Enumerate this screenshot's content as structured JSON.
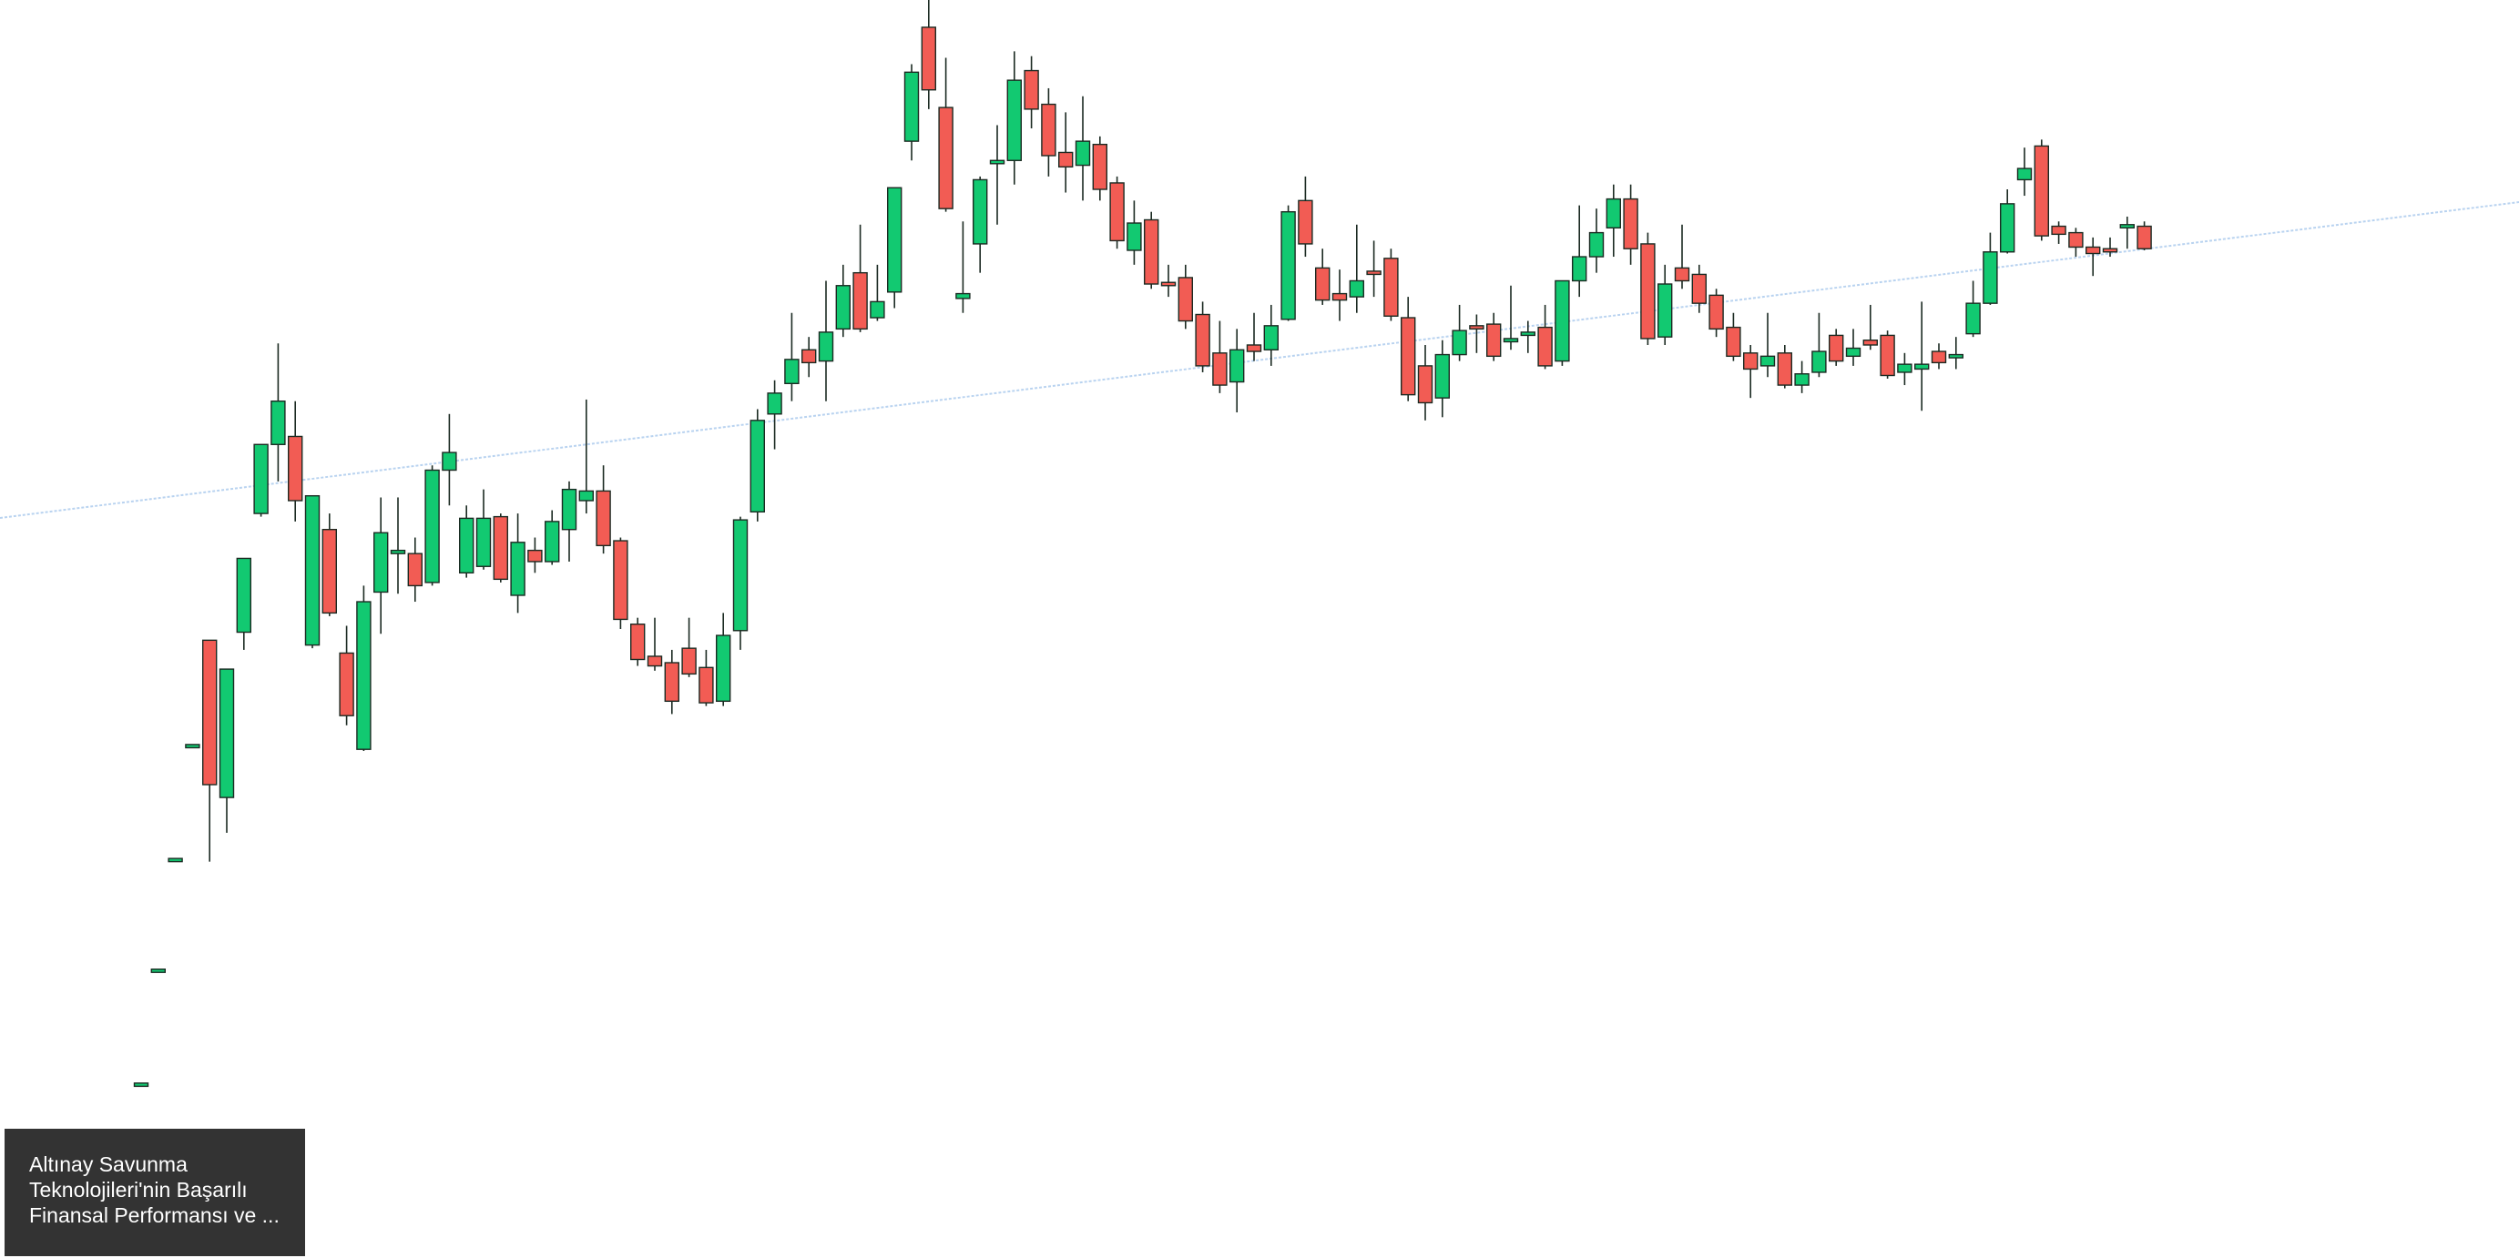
{
  "chart_data": {
    "type": "candlestick",
    "ylim": [
      0,
      784
    ],
    "up_color": "#12c971",
    "down_color": "#f25c54",
    "edge_color": "#1b2a22",
    "annotation": [
      "Altınay Savunma",
      "Teknolojileri'nin Başarılı",
      "Finansal Performansı ve ..."
    ],
    "series": [
      {
        "open": [
          107,
          178,
          247,
          318,
          385,
          287,
          390,
          464,
          507,
          512,
          382,
          454,
          377,
          317,
          415,
          439,
          439,
          421,
          491,
          427,
          431,
          462,
          413,
          441,
          434,
          454,
          472,
          478,
          447,
          395,
          375,
          371,
          380,
          368,
          347,
          391,
          465,
          526,
          545,
          566,
          559,
          579,
          614,
          586,
          602,
          696,
          767,
          717,
          598,
          632,
          682,
          684,
          740,
          719,
          689,
          681,
          694,
          670,
          628,
          647,
          608,
          611,
          588,
          564,
          546,
          569,
          566,
          585,
          659,
          617,
          601,
          599,
          615,
          623,
          586,
          556,
          536,
          563,
          581,
          582,
          571,
          575,
          580,
          559,
          609,
          624,
          642,
          660,
          632,
          574,
          617,
          613,
          600,
          580,
          564,
          556,
          564,
          544,
          552,
          575,
          562,
          572,
          575,
          552,
          554,
          565,
          561,
          576,
          595,
          627,
          672,
          693,
          643,
          639,
          630,
          629,
          642,
          643
        ],
        "high": [
          109,
          180,
          249,
          320,
          385,
          367,
          436,
          507,
          570,
          534,
          475,
          464,
          394,
          419,
          474,
          474,
          449,
          494,
          526,
          469,
          479,
          464,
          464,
          449,
          466,
          484,
          535,
          494,
          449,
          399,
          399,
          379,
          399,
          379,
          402,
          462,
          529,
          547,
          589,
          574,
          609,
          619,
          644,
          619,
          667,
          744,
          784,
          748,
          646,
          674,
          706,
          752,
          749,
          729,
          714,
          724,
          699,
          674,
          659,
          652,
          619,
          619,
          596,
          584,
          579,
          589,
          594,
          656,
          674,
          629,
          616,
          644,
          634,
          629,
          599,
          569,
          572,
          594,
          588,
          589,
          606,
          584,
          594,
          609,
          656,
          654,
          669,
          669,
          639,
          619,
          644,
          619,
          604,
          589,
          569,
          589,
          569,
          559,
          589,
          579,
          579,
          594,
          578,
          564,
          596,
          570,
          574,
          609,
          639,
          666,
          692,
          697,
          646,
          642,
          636,
          636,
          649,
          646
        ],
        "low": [
          107,
          178,
          247,
          318,
          247,
          265,
          379,
          462,
          484,
          459,
          380,
          400,
          332,
          316,
          389,
          414,
          409,
          419,
          469,
          424,
          429,
          421,
          402,
          427,
          432,
          434,
          464,
          439,
          392,
          369,
          366,
          339,
          362,
          344,
          344,
          379,
          459,
          504,
          534,
          549,
          534,
          574,
          577,
          584,
          592,
          684,
          716,
          652,
          589,
          614,
          644,
          669,
          704,
          674,
          664,
          659,
          659,
          629,
          619,
          604,
          599,
          579,
          552,
          539,
          527,
          559,
          556,
          584,
          624,
          594,
          584,
          589,
          599,
          584,
          534,
          522,
          524,
          559,
          564,
          559,
          566,
          564,
          554,
          556,
          599,
          614,
          624,
          619,
          569,
          569,
          604,
          589,
          574,
          559,
          536,
          549,
          542,
          539,
          549,
          556,
          556,
          566,
          548,
          544,
          528,
          554,
          554,
          574,
          594,
          626,
          662,
          634,
          632,
          624,
          612,
          624,
          629,
          628
        ],
        "close": [
          109,
          180,
          249,
          320,
          295,
          367,
          436,
          507,
          534,
          472,
          475,
          402,
          338,
          409,
          452,
          441,
          419,
          491,
          502,
          461,
          461,
          423,
          446,
          434,
          459,
          479,
          478,
          444,
          398,
          373,
          369,
          347,
          364,
          346,
          388,
          460,
          522,
          539,
          560,
          558,
          577,
          606,
          579,
          596,
          667,
          739,
          728,
          654,
          601,
          672,
          684,
          734,
          716,
          687,
          680,
          696,
          666,
          634,
          645,
          607,
          606,
          584,
          556,
          544,
          566,
          565,
          581,
          652,
          632,
          597,
          597,
          609,
          613,
          587,
          538,
          533,
          563,
          578,
          579,
          562,
          573,
          577,
          556,
          609,
          624,
          639,
          660,
          629,
          573,
          607,
          609,
          595,
          579,
          562,
          554,
          562,
          544,
          551,
          565,
          559,
          567,
          569,
          550,
          557,
          557,
          558,
          563,
          595,
          627,
          657,
          679,
          637,
          638,
          630,
          626,
          627,
          644,
          629
        ]
      }
    ]
  }
}
